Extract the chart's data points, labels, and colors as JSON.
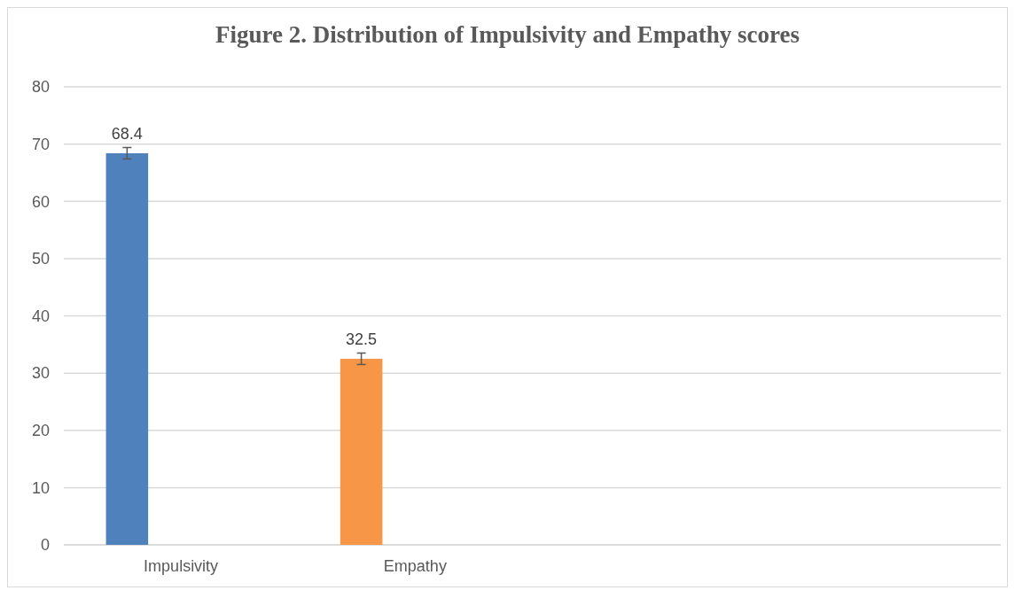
{
  "chart_data": {
    "type": "bar",
    "title": "Figure 2. Distribution of Impulsivity and Empathy scores",
    "categories": [
      "Impulsivity",
      "Empathy",
      null,
      null
    ],
    "values": [
      68.4,
      32.5,
      null,
      null
    ],
    "colors": [
      "#4f81bd",
      "#f79646",
      null,
      null
    ],
    "errors": [
      1.0,
      1.0,
      null,
      null
    ],
    "data_labels": true,
    "ylim": [
      0,
      80
    ],
    "yticks": [
      0,
      10,
      20,
      30,
      40,
      50,
      60,
      70,
      80
    ],
    "grid": "y"
  }
}
